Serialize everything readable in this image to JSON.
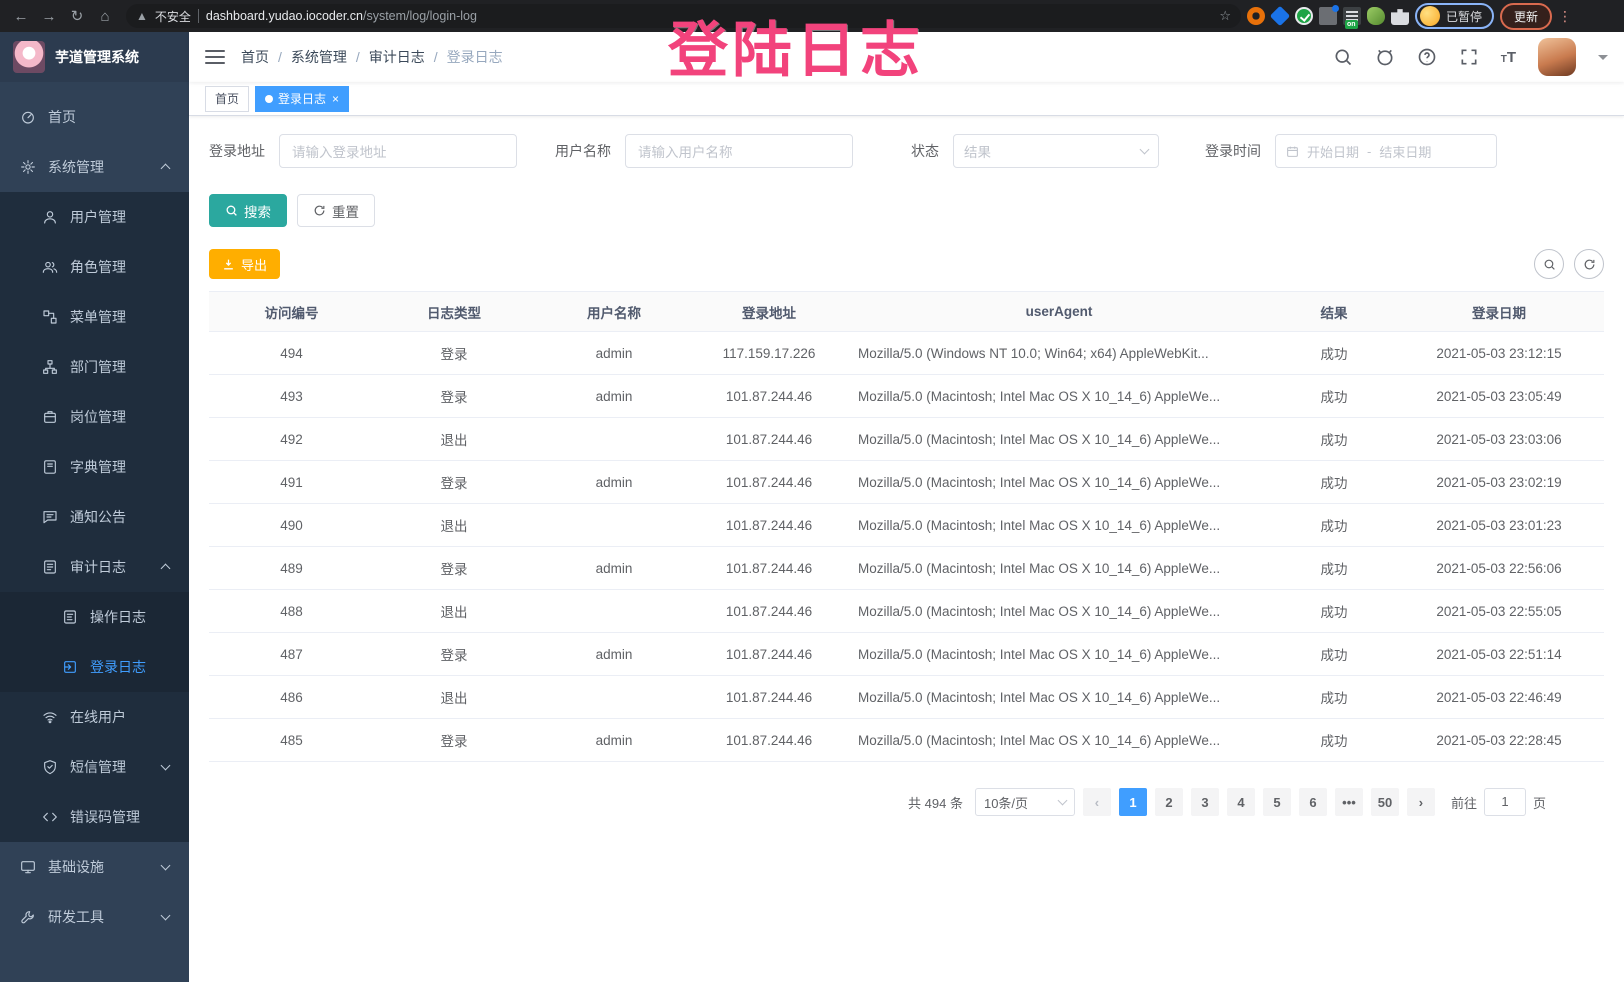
{
  "colors": {
    "accent": "#409eff",
    "teal": "#2ba89f",
    "orange": "#ffae00",
    "pink": "#f2437c"
  },
  "browser": {
    "security_label": "不安全",
    "url_domain": "dashboard.yudao.iocoder.cn",
    "url_path": "/system/log/login-log",
    "extension_badge": "on",
    "paused_label": "已暂停",
    "update_label": "更新"
  },
  "overlay": {
    "text": "登陆日志"
  },
  "sidebar": {
    "title": "芋道管理系统",
    "items": [
      {
        "label": "首页",
        "icon": "dashboard-icon",
        "level": 0
      },
      {
        "label": "系统管理",
        "icon": "gear-icon",
        "level": 0,
        "arrow": "up"
      },
      {
        "label": "用户管理",
        "icon": "user-icon",
        "level": 1
      },
      {
        "label": "角色管理",
        "icon": "peoples-icon",
        "level": 1
      },
      {
        "label": "菜单管理",
        "icon": "tree-table-icon",
        "level": 1
      },
      {
        "label": "部门管理",
        "icon": "tree-icon",
        "level": 1
      },
      {
        "label": "岗位管理",
        "icon": "post-icon",
        "level": 1
      },
      {
        "label": "字典管理",
        "icon": "dict-icon",
        "level": 1
      },
      {
        "label": "通知公告",
        "icon": "message-icon",
        "level": 1
      },
      {
        "label": "审计日志",
        "icon": "log-icon",
        "level": 1,
        "arrow": "up"
      },
      {
        "label": "操作日志",
        "icon": "form-icon",
        "level": 2
      },
      {
        "label": "登录日志",
        "icon": "login-log-icon",
        "level": 2,
        "active": true
      },
      {
        "label": "在线用户",
        "icon": "online-icon",
        "level": 1
      },
      {
        "label": "短信管理",
        "icon": "sms-icon",
        "level": 1,
        "arrow": "down"
      },
      {
        "label": "错误码管理",
        "icon": "code-icon",
        "level": 1
      },
      {
        "label": "基础设施",
        "icon": "infra-icon",
        "level": 0,
        "arrow": "down"
      },
      {
        "label": "研发工具",
        "icon": "tools-icon",
        "level": 0,
        "arrow": "down"
      }
    ]
  },
  "navbar": {
    "breadcrumb": [
      "首页",
      "系统管理",
      "审计日志",
      "登录日志"
    ]
  },
  "tags": [
    {
      "label": "首页",
      "active": false,
      "closable": false
    },
    {
      "label": "登录日志",
      "active": true,
      "closable": true
    }
  ],
  "filters": {
    "address_label": "登录地址",
    "address_placeholder": "请输入登录地址",
    "username_label": "用户名称",
    "username_placeholder": "请输入用户名称",
    "status_label": "状态",
    "status_placeholder": "结果",
    "time_label": "登录时间",
    "start_placeholder": "开始日期",
    "range_separator": "-",
    "end_placeholder": "结束日期",
    "search_label": "搜索",
    "reset_label": "重置"
  },
  "toolbar": {
    "export_label": "导出"
  },
  "table": {
    "columns": [
      "访问编号",
      "日志类型",
      "用户名称",
      "登录地址",
      "userAgent",
      "结果",
      "登录日期"
    ],
    "rows": [
      [
        "494",
        "登录",
        "admin",
        "117.159.17.226",
        "Mozilla/5.0 (Windows NT 10.0; Win64; x64) AppleWebKit...",
        "成功",
        "2021-05-03 23:12:15"
      ],
      [
        "493",
        "登录",
        "admin",
        "101.87.244.46",
        "Mozilla/5.0 (Macintosh; Intel Mac OS X 10_14_6) AppleWe...",
        "成功",
        "2021-05-03 23:05:49"
      ],
      [
        "492",
        "退出",
        "",
        "101.87.244.46",
        "Mozilla/5.0 (Macintosh; Intel Mac OS X 10_14_6) AppleWe...",
        "成功",
        "2021-05-03 23:03:06"
      ],
      [
        "491",
        "登录",
        "admin",
        "101.87.244.46",
        "Mozilla/5.0 (Macintosh; Intel Mac OS X 10_14_6) AppleWe...",
        "成功",
        "2021-05-03 23:02:19"
      ],
      [
        "490",
        "退出",
        "",
        "101.87.244.46",
        "Mozilla/5.0 (Macintosh; Intel Mac OS X 10_14_6) AppleWe...",
        "成功",
        "2021-05-03 23:01:23"
      ],
      [
        "489",
        "登录",
        "admin",
        "101.87.244.46",
        "Mozilla/5.0 (Macintosh; Intel Mac OS X 10_14_6) AppleWe...",
        "成功",
        "2021-05-03 22:56:06"
      ],
      [
        "488",
        "退出",
        "",
        "101.87.244.46",
        "Mozilla/5.0 (Macintosh; Intel Mac OS X 10_14_6) AppleWe...",
        "成功",
        "2021-05-03 22:55:05"
      ],
      [
        "487",
        "登录",
        "admin",
        "101.87.244.46",
        "Mozilla/5.0 (Macintosh; Intel Mac OS X 10_14_6) AppleWe...",
        "成功",
        "2021-05-03 22:51:14"
      ],
      [
        "486",
        "退出",
        "",
        "101.87.244.46",
        "Mozilla/5.0 (Macintosh; Intel Mac OS X 10_14_6) AppleWe...",
        "成功",
        "2021-05-03 22:46:49"
      ],
      [
        "485",
        "登录",
        "admin",
        "101.87.244.46",
        "Mozilla/5.0 (Macintosh; Intel Mac OS X 10_14_6) AppleWe...",
        "成功",
        "2021-05-03 22:28:45"
      ]
    ]
  },
  "pagination": {
    "total_text": "共 494 条",
    "page_size": "10条/页",
    "pages": [
      "1",
      "2",
      "3",
      "4",
      "5",
      "6",
      "•••",
      "50"
    ],
    "active_page": "1",
    "goto_label": "前往",
    "goto_value": "1",
    "page_unit": "页"
  }
}
